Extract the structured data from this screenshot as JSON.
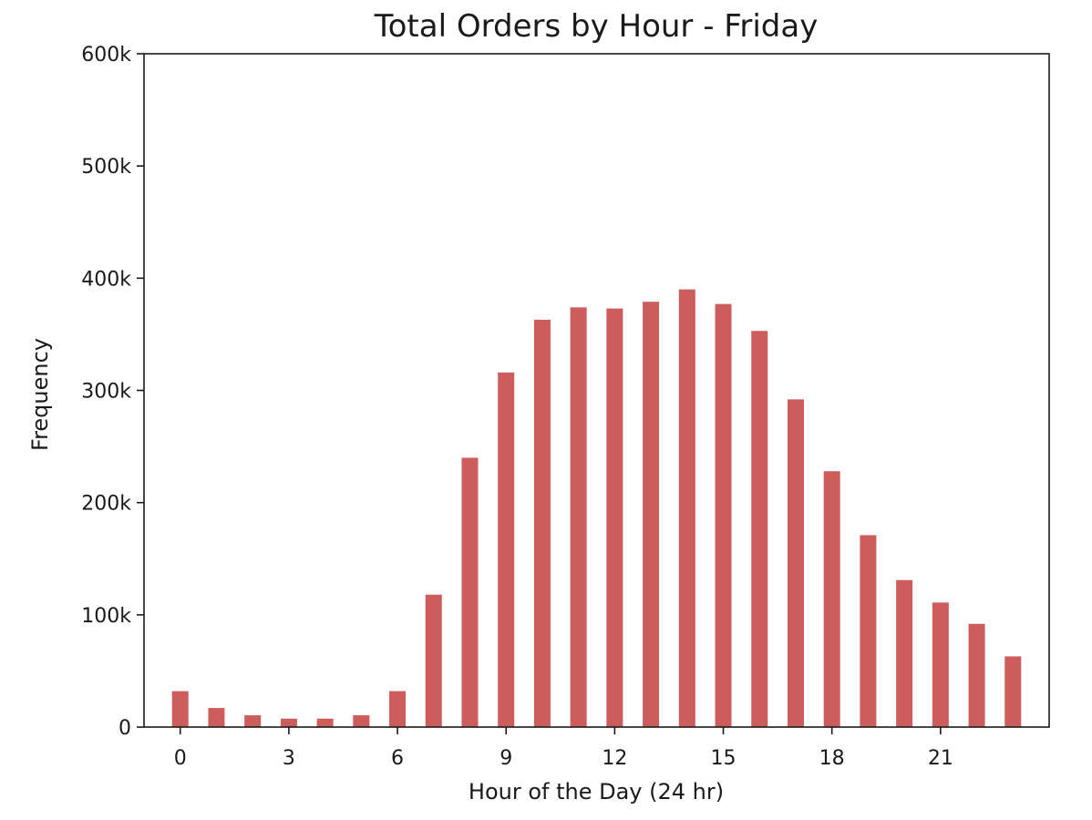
{
  "chart_data": {
    "type": "bar",
    "title": "Total Orders by Hour - Friday",
    "xlabel": "Hour of the Day (24 hr)",
    "ylabel": "Frequency",
    "x": [
      0,
      1,
      2,
      3,
      4,
      5,
      6,
      7,
      8,
      9,
      10,
      11,
      12,
      13,
      14,
      15,
      16,
      17,
      18,
      19,
      20,
      21,
      22,
      23
    ],
    "values": [
      32000,
      17000,
      10500,
      7500,
      7500,
      10500,
      32000,
      118000,
      240000,
      316000,
      363000,
      374000,
      373000,
      379000,
      390000,
      377000,
      353000,
      292000,
      228000,
      171000,
      131000,
      111000,
      92000,
      63000
    ],
    "xlim": [
      -1,
      24
    ],
    "ylim": [
      0,
      600000
    ],
    "xticks": [
      0,
      3,
      6,
      9,
      12,
      15,
      18,
      21
    ],
    "xtick_labels": [
      "0",
      "3",
      "6",
      "9",
      "12",
      "15",
      "18",
      "21"
    ],
    "yticks": [
      0,
      100000,
      200000,
      300000,
      400000,
      500000,
      600000
    ],
    "ytick_labels": [
      "0",
      "100k",
      "200k",
      "300k",
      "400k",
      "500k",
      "600k"
    ],
    "grid": false,
    "bar_color": "#cd5c5c"
  }
}
